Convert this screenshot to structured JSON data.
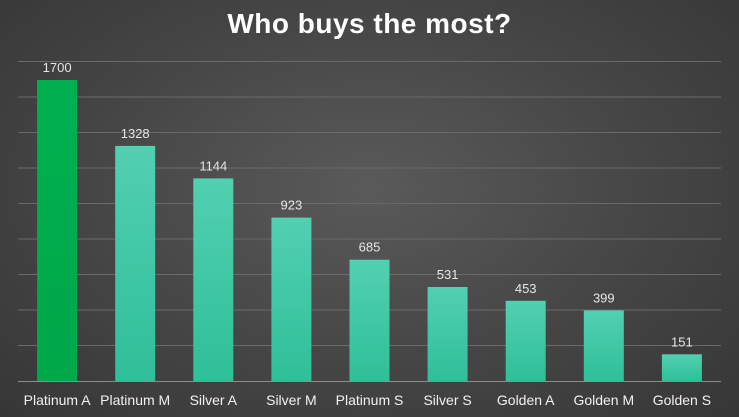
{
  "chart_data": {
    "type": "bar",
    "title": "Who buys the most?",
    "xlabel": "",
    "ylabel": "",
    "categories": [
      "Platinum A",
      "Platinum M",
      "Silver A",
      "Silver M",
      "Platinum S",
      "Silver S",
      "Golden A",
      "Golden M",
      "Golden S"
    ],
    "values": [
      1700,
      1328,
      1144,
      923,
      685,
      531,
      453,
      399,
      151
    ],
    "ylim": [
      0,
      1700
    ],
    "grid": true,
    "legend": "none",
    "data_labels": true,
    "colors": {
      "highlight": "#00b050",
      "bars": "#3fc9a6",
      "grid": "#6a6a6a",
      "axis": "#8c8c8c",
      "text": "#ffffff"
    },
    "highlight_index": 0
  }
}
